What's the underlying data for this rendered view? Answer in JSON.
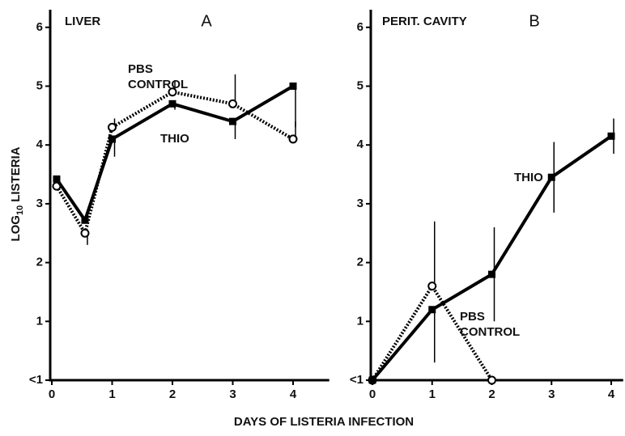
{
  "xlabel": "DAYS OF LISTERIA INFECTION",
  "ylabel": [
    "LOG",
    "10",
    "LISTERIA"
  ],
  "chart_data": [
    {
      "type": "line",
      "title": "LIVER",
      "panel": "A",
      "xlim": [
        0,
        4.6
      ],
      "xticks": [
        0,
        1,
        2,
        3,
        4
      ],
      "ylim": [
        0,
        6.3
      ],
      "yticks": [
        {
          "value": 0,
          "label": "<1"
        },
        1,
        2,
        3,
        4,
        5,
        6
      ],
      "series": [
        {
          "name": "PBS CONTROL",
          "color": "#000000",
          "dash": true,
          "marker": "circle",
          "x": [
            0.08,
            0.55,
            1,
            2,
            3,
            4
          ],
          "values": [
            3.3,
            2.5,
            4.3,
            4.9,
            4.7,
            4.1
          ],
          "err_up": [
            null,
            null,
            0.15,
            0.2,
            0.5,
            0.3
          ],
          "err_down": [
            null,
            0.2,
            null,
            null,
            null,
            null
          ]
        },
        {
          "name": "THIO",
          "color": "#000000",
          "dash": false,
          "marker": "square",
          "x": [
            0.08,
            0.55,
            1,
            2,
            3,
            4
          ],
          "values": [
            3.42,
            2.72,
            4.1,
            4.7,
            4.4,
            5.0
          ],
          "err_up": [
            null,
            null,
            null,
            null,
            null,
            null
          ],
          "err_down": [
            null,
            null,
            0.3,
            0.1,
            0.3,
            0.7
          ]
        }
      ]
    },
    {
      "type": "line",
      "title": "PERIT. CAVITY",
      "panel": "B",
      "xlim": [
        0,
        4.2
      ],
      "xticks": [
        0,
        1,
        2,
        3,
        4
      ],
      "ylim": [
        0,
        6.3
      ],
      "yticks": [
        {
          "value": 0,
          "label": "<1"
        },
        1,
        2,
        3,
        4,
        5,
        6
      ],
      "series": [
        {
          "name": "PBS CONTROL",
          "color": "#000000",
          "dash": true,
          "marker": "circle",
          "x": [
            0,
            1,
            2
          ],
          "values": [
            0,
            1.6,
            0
          ],
          "err_up": [
            null,
            1.1,
            null
          ],
          "err_down": [
            null,
            null,
            null
          ]
        },
        {
          "name": "THIO",
          "color": "#000000",
          "dash": false,
          "marker": "square",
          "x": [
            0,
            1,
            2,
            3,
            4
          ],
          "values": [
            0,
            1.2,
            1.8,
            3.45,
            4.15
          ],
          "err_up": [
            null,
            null,
            0.8,
            0.6,
            0.3
          ],
          "err_down": [
            null,
            0.9,
            0.8,
            0.6,
            0.3
          ]
        }
      ]
    }
  ]
}
